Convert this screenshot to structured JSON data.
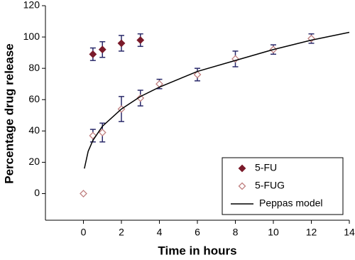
{
  "chart_data": {
    "type": "scatter",
    "xlabel": "Time in hours",
    "ylabel": "Percentage drug release",
    "xlim": [
      -2,
      14
    ],
    "ylim": [
      -17,
      120
    ],
    "xticks": [
      0,
      2,
      4,
      6,
      8,
      10,
      12,
      14
    ],
    "yticks": [
      0,
      20,
      40,
      60,
      80,
      100,
      120
    ],
    "legend": "lower right",
    "series": [
      {
        "name": "5-FU",
        "color": "#7a1a2a",
        "marker": "filled",
        "error_color": "#2a2a6a",
        "x": [
          0.5,
          1,
          2,
          3
        ],
        "values": [
          89,
          92,
          96,
          98
        ],
        "errors": [
          4,
          5,
          5,
          4
        ]
      },
      {
        "name": "5-FUG",
        "color": "#c08080",
        "marker": "hollow",
        "error_color": "#2a2a6a",
        "x": [
          0,
          0.5,
          1,
          2,
          3,
          4,
          6,
          8,
          10,
          12
        ],
        "values": [
          0,
          37,
          39,
          54,
          61,
          70,
          76,
          86,
          92,
          99
        ],
        "errors": [
          0,
          4,
          6,
          8,
          5,
          3,
          4,
          5,
          3,
          3
        ]
      },
      {
        "name": "Peppas model",
        "color": "#000000",
        "marker": "line",
        "x": [
          0.05,
          0.25,
          0.5,
          1,
          2,
          3,
          4,
          6,
          8,
          10,
          12,
          14
        ],
        "values": [
          16,
          27,
          34,
          43,
          54,
          62,
          68,
          78,
          85,
          92,
          98,
          103
        ]
      }
    ]
  }
}
